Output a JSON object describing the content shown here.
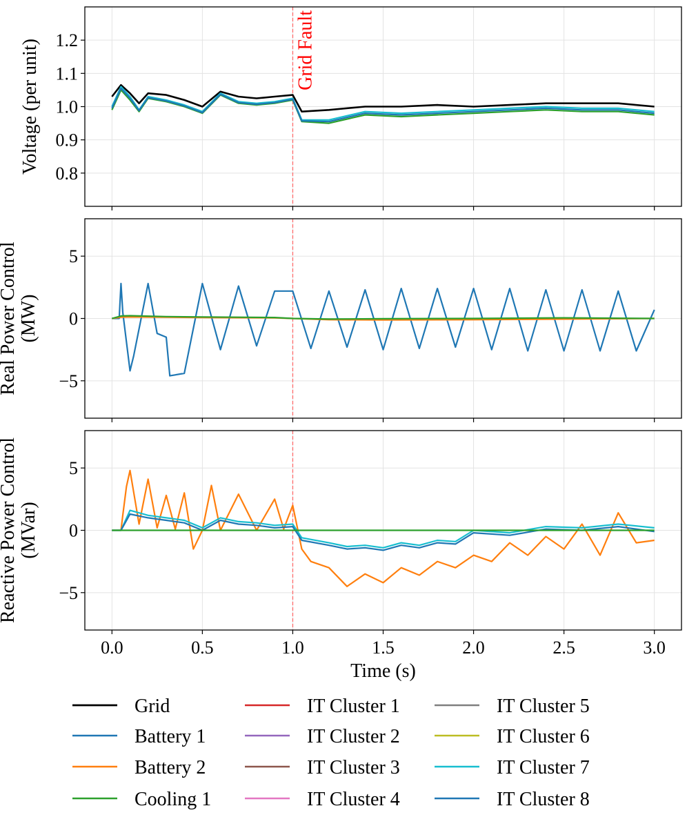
{
  "chart_data": [
    {
      "type": "line",
      "ylabel": [
        "Voltage (per unit)"
      ],
      "ylim": [
        0.7,
        1.3
      ],
      "yticks": [
        0.8,
        0.9,
        1.0,
        1.1,
        1.2
      ],
      "ytick_labels": [
        "0.8",
        "0.9",
        "1.0",
        "1.1",
        "1.2"
      ],
      "xlim": [
        -0.15,
        3.15
      ],
      "annotation": "Grid Fault",
      "fault_time": 1.0,
      "series": [
        {
          "name": "Grid",
          "color": "#000000",
          "x": [
            0,
            0.05,
            0.1,
            0.15,
            0.2,
            0.3,
            0.4,
            0.5,
            0.6,
            0.7,
            0.8,
            0.9,
            1.0,
            1.05,
            1.2,
            1.4,
            1.6,
            1.8,
            2.0,
            2.2,
            2.4,
            2.6,
            2.8,
            3.0
          ],
          "y": [
            1.03,
            1.065,
            1.04,
            1.01,
            1.04,
            1.035,
            1.02,
            1.0,
            1.045,
            1.03,
            1.025,
            1.03,
            1.035,
            0.985,
            0.99,
            1.0,
            1.0,
            1.005,
            1.0,
            1.005,
            1.01,
            1.01,
            1.01,
            1.0
          ]
        },
        {
          "name": "Cooling 1",
          "color": "#2ca02c",
          "x": [
            0,
            0.05,
            0.1,
            0.15,
            0.2,
            0.3,
            0.4,
            0.5,
            0.6,
            0.7,
            0.8,
            0.9,
            1.0,
            1.05,
            1.2,
            1.4,
            1.6,
            1.8,
            2.0,
            2.2,
            2.4,
            2.6,
            2.8,
            3.0
          ],
          "y": [
            0.99,
            1.05,
            1.02,
            0.985,
            1.025,
            1.015,
            1.0,
            0.98,
            1.035,
            1.01,
            1.005,
            1.01,
            1.02,
            0.955,
            0.95,
            0.975,
            0.97,
            0.975,
            0.98,
            0.985,
            0.99,
            0.985,
            0.985,
            0.975
          ]
        },
        {
          "name": "IT Cluster 7",
          "color": "#17becf",
          "x": [
            0,
            0.05,
            0.1,
            0.15,
            0.2,
            0.3,
            0.4,
            0.5,
            0.6,
            0.7,
            0.8,
            0.9,
            1.0,
            1.05,
            1.2,
            1.4,
            1.6,
            1.8,
            2.0,
            2.2,
            2.4,
            2.6,
            2.8,
            3.0
          ],
          "y": [
            1.0,
            1.06,
            1.03,
            0.99,
            1.03,
            1.02,
            1.005,
            0.985,
            1.04,
            1.015,
            1.01,
            1.015,
            1.025,
            0.96,
            0.96,
            0.985,
            0.98,
            0.985,
            0.99,
            0.995,
            1.0,
            0.995,
            0.995,
            0.985
          ]
        },
        {
          "name": "IT Cluster 8",
          "color": "#1f77b4",
          "x": [
            0,
            0.05,
            0.1,
            0.15,
            0.2,
            0.3,
            0.4,
            0.5,
            0.6,
            0.7,
            0.8,
            0.9,
            1.0,
            1.05,
            1.2,
            1.4,
            1.6,
            1.8,
            2.0,
            2.2,
            2.4,
            2.6,
            2.8,
            3.0
          ],
          "y": [
            0.995,
            1.055,
            1.025,
            0.988,
            1.027,
            1.017,
            1.002,
            0.982,
            1.037,
            1.012,
            1.007,
            1.012,
            1.022,
            0.957,
            0.955,
            0.98,
            0.975,
            0.98,
            0.985,
            0.99,
            0.995,
            0.99,
            0.99,
            0.98
          ]
        }
      ]
    },
    {
      "type": "line",
      "ylabel": [
        "Real Power Control",
        "(MW)"
      ],
      "ylim": [
        -8,
        8
      ],
      "yticks": [
        -5,
        0,
        5
      ],
      "ytick_labels": [
        "−5",
        "0",
        "5"
      ],
      "xlim": [
        -0.15,
        3.15
      ],
      "series": [
        {
          "name": "Battery 1",
          "color": "#1f77b4",
          "x": [
            0,
            0.04,
            0.05,
            0.06,
            0.1,
            0.12,
            0.2,
            0.25,
            0.3,
            0.32,
            0.4,
            0.5,
            0.6,
            0.7,
            0.8,
            0.9,
            1.0,
            1.1,
            1.2,
            1.3,
            1.4,
            1.5,
            1.6,
            1.7,
            1.8,
            1.9,
            2.0,
            2.1,
            2.2,
            2.3,
            2.4,
            2.5,
            2.6,
            2.7,
            2.8,
            2.9,
            3.0
          ],
          "y": [
            0,
            0,
            2.8,
            0.5,
            -4.2,
            -3.0,
            2.8,
            -1.2,
            -1.5,
            -4.6,
            -4.4,
            2.8,
            -2.5,
            2.6,
            -2.2,
            2.2,
            2.2,
            -2.4,
            2.2,
            -2.3,
            2.3,
            -2.5,
            2.4,
            -2.4,
            2.4,
            -2.3,
            2.4,
            -2.5,
            2.4,
            -2.6,
            2.3,
            -2.6,
            2.3,
            -2.6,
            2.2,
            -2.6,
            0.7
          ]
        },
        {
          "name": "Battery 2",
          "color": "#ff7f0e",
          "x": [
            0,
            0.05,
            0.1,
            0.3,
            0.5,
            0.7,
            0.9,
            1.0,
            1.2,
            1.5,
            2.0,
            2.5,
            3.0
          ],
          "y": [
            0,
            0.1,
            0.12,
            0.1,
            0.08,
            0.06,
            0.05,
            0.0,
            -0.1,
            -0.12,
            -0.1,
            -0.05,
            0.0
          ]
        },
        {
          "name": "Cooling 1",
          "color": "#2ca02c",
          "x": [
            0,
            0.05,
            0.1,
            0.3,
            0.5,
            0.7,
            0.9,
            1.0,
            1.2,
            1.5,
            2.0,
            2.5,
            3.0
          ],
          "y": [
            0,
            0.2,
            0.22,
            0.15,
            0.12,
            0.1,
            0.08,
            0.0,
            -0.05,
            -0.02,
            0.0,
            0.05,
            0.0
          ]
        }
      ]
    },
    {
      "type": "line",
      "ylabel": [
        "Reactive Power Control",
        "(MVar)"
      ],
      "ylim": [
        -8,
        8
      ],
      "yticks": [
        -5,
        0,
        5
      ],
      "ytick_labels": [
        "−5",
        "0",
        "5"
      ],
      "xlim": [
        -0.15,
        3.15
      ],
      "xticks": [
        0.0,
        0.5,
        1.0,
        1.5,
        2.0,
        2.5,
        3.0
      ],
      "xtick_labels": [
        "0.0",
        "0.5",
        "1.0",
        "1.5",
        "2.0",
        "2.5",
        "3.0"
      ],
      "xlabel": "Time (s)",
      "series": [
        {
          "name": "Battery 2",
          "color": "#ff7f0e",
          "x": [
            0,
            0.05,
            0.06,
            0.08,
            0.1,
            0.15,
            0.2,
            0.25,
            0.3,
            0.35,
            0.4,
            0.45,
            0.5,
            0.55,
            0.6,
            0.7,
            0.8,
            0.9,
            0.95,
            1.0,
            1.05,
            1.1,
            1.2,
            1.3,
            1.4,
            1.5,
            1.6,
            1.7,
            1.8,
            1.9,
            2.0,
            2.1,
            2.2,
            2.3,
            2.4,
            2.5,
            2.6,
            2.7,
            2.8,
            2.9,
            3.0
          ],
          "y": [
            0,
            0,
            1.2,
            3.5,
            4.8,
            0.5,
            4.1,
            0.2,
            2.8,
            0.1,
            3.0,
            -1.5,
            0.0,
            3.6,
            0.0,
            2.9,
            0.0,
            2.5,
            0.1,
            2.0,
            -1.5,
            -2.5,
            -3.0,
            -4.5,
            -3.5,
            -4.2,
            -3.0,
            -3.6,
            -2.5,
            -3.0,
            -2.0,
            -2.5,
            -1.0,
            -2.0,
            -0.5,
            -1.5,
            0.5,
            -2.0,
            1.4,
            -1.0,
            -0.8
          ]
        },
        {
          "name": "IT Cluster 7",
          "color": "#17becf",
          "x": [
            0,
            0.05,
            0.1,
            0.2,
            0.3,
            0.4,
            0.5,
            0.6,
            0.7,
            0.8,
            0.9,
            1.0,
            1.05,
            1.2,
            1.3,
            1.4,
            1.5,
            1.6,
            1.7,
            1.8,
            1.9,
            2.0,
            2.2,
            2.4,
            2.6,
            2.8,
            3.0
          ],
          "y": [
            0,
            0,
            1.6,
            1.2,
            1.0,
            0.8,
            0.2,
            1.0,
            0.7,
            0.6,
            0.4,
            0.5,
            -0.6,
            -1.0,
            -1.3,
            -1.2,
            -1.4,
            -1.0,
            -1.2,
            -0.8,
            -0.9,
            0.0,
            -0.2,
            0.3,
            0.2,
            0.5,
            0.2
          ]
        },
        {
          "name": "IT Cluster 8",
          "color": "#1f77b4",
          "x": [
            0,
            0.05,
            0.1,
            0.2,
            0.3,
            0.4,
            0.5,
            0.6,
            0.7,
            0.8,
            0.9,
            1.0,
            1.05,
            1.2,
            1.3,
            1.4,
            1.5,
            1.6,
            1.7,
            1.8,
            1.9,
            2.0,
            2.2,
            2.4,
            2.6,
            2.8,
            3.0
          ],
          "y": [
            0,
            0,
            1.3,
            1.0,
            0.8,
            0.6,
            0.0,
            0.8,
            0.5,
            0.4,
            0.2,
            0.3,
            -0.8,
            -1.2,
            -1.5,
            -1.4,
            -1.6,
            -1.2,
            -1.4,
            -1.0,
            -1.1,
            -0.2,
            -0.4,
            0.1,
            0.0,
            0.3,
            -0.1
          ]
        },
        {
          "name": "Cooling 1",
          "color": "#2ca02c",
          "x": [
            0,
            1.0,
            3.0
          ],
          "y": [
            0,
            0,
            0
          ]
        }
      ]
    }
  ],
  "legend": {
    "placement": "bottom",
    "columns": 3,
    "entries": [
      {
        "label": "Grid",
        "color": "#000000"
      },
      {
        "label": "Battery 1",
        "color": "#1f77b4"
      },
      {
        "label": "Battery 2",
        "color": "#ff7f0e"
      },
      {
        "label": "Cooling 1",
        "color": "#2ca02c"
      },
      {
        "label": "IT Cluster 1",
        "color": "#d62728"
      },
      {
        "label": "IT Cluster 2",
        "color": "#9467bd"
      },
      {
        "label": "IT Cluster 3",
        "color": "#8c564b"
      },
      {
        "label": "IT Cluster 4",
        "color": "#e377c2"
      },
      {
        "label": "IT Cluster 5",
        "color": "#7f7f7f"
      },
      {
        "label": "IT Cluster 6",
        "color": "#bcbd22"
      },
      {
        "label": "IT Cluster 7",
        "color": "#17becf"
      },
      {
        "label": "IT Cluster 8",
        "color": "#1f77b4"
      }
    ]
  }
}
